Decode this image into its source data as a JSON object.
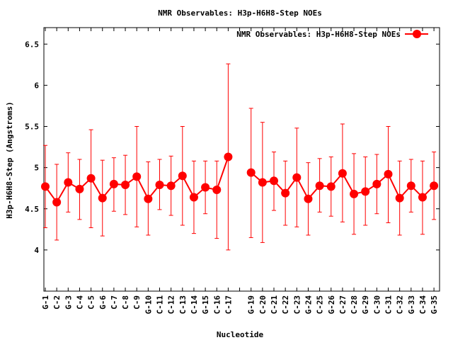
{
  "chart_data": {
    "type": "line",
    "title": "NMR Observables: H3p-H6H8-Step NOEs",
    "xlabel": "Nucleotide",
    "ylabel": "H3p-H6H8-Step (Angstroms)",
    "ylim": [
      3.5,
      6.7
    ],
    "yticks": [
      "4",
      "4.5",
      "5",
      "5.5",
      "6",
      "6.5"
    ],
    "grid": false,
    "legend_position": "top-right",
    "error_bars": true,
    "categories": [
      "G-1",
      "C-2",
      "G-3",
      "C-4",
      "C-5",
      "G-6",
      "C-7",
      "C-8",
      "C-9",
      "G-10",
      "C-11",
      "C-12",
      "C-13",
      "C-14",
      "G-15",
      "C-16",
      "C-17",
      "",
      "G-19",
      "C-20",
      "C-21",
      "C-22",
      "C-23",
      "G-24",
      "C-25",
      "G-26",
      "C-27",
      "C-28",
      "G-29",
      "C-30",
      "C-31",
      "C-32",
      "G-33",
      "C-34",
      "G-35"
    ],
    "series": [
      {
        "name": "NMR Observables: H3p-H6H8-Step NOEs",
        "color": "#ff0000",
        "values": [
          4.77,
          4.58,
          4.82,
          4.74,
          4.87,
          4.63,
          4.8,
          4.79,
          4.89,
          4.62,
          4.79,
          4.78,
          4.9,
          4.64,
          4.76,
          4.73,
          5.13,
          null,
          4.94,
          4.82,
          4.84,
          4.69,
          4.88,
          4.62,
          4.78,
          4.77,
          4.93,
          4.68,
          4.71,
          4.8,
          4.92,
          4.63,
          4.78,
          4.64,
          4.78
        ],
        "lower": [
          4.27,
          4.12,
          4.46,
          4.37,
          4.27,
          4.17,
          4.47,
          4.43,
          4.28,
          4.18,
          4.49,
          4.42,
          4.3,
          4.2,
          4.44,
          4.14,
          4.0,
          null,
          4.15,
          4.09,
          4.48,
          4.3,
          4.28,
          4.18,
          4.46,
          4.41,
          4.34,
          4.19,
          4.3,
          4.44,
          4.33,
          4.18,
          4.46,
          4.19,
          4.37
        ],
        "upper": [
          5.27,
          5.04,
          5.18,
          5.1,
          5.46,
          5.09,
          5.12,
          5.15,
          5.5,
          5.07,
          5.1,
          5.14,
          5.5,
          5.08,
          5.08,
          5.08,
          6.26,
          null,
          5.72,
          5.55,
          5.19,
          5.08,
          5.48,
          5.06,
          5.11,
          5.13,
          5.53,
          5.17,
          5.13,
          5.16,
          5.5,
          5.08,
          5.1,
          5.08,
          5.19
        ]
      }
    ]
  }
}
